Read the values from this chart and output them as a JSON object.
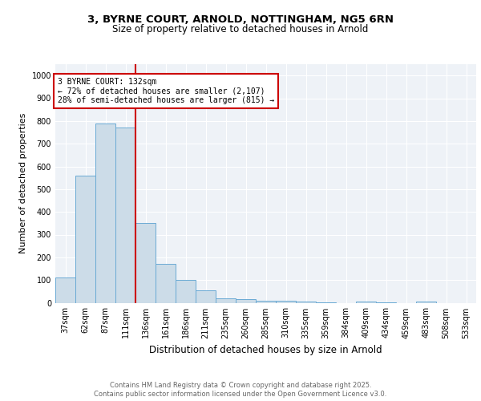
{
  "title_line1": "3, BYRNE COURT, ARNOLD, NOTTINGHAM, NG5 6RN",
  "title_line2": "Size of property relative to detached houses in Arnold",
  "xlabel": "Distribution of detached houses by size in Arnold",
  "ylabel": "Number of detached properties",
  "categories": [
    "37sqm",
    "62sqm",
    "87sqm",
    "111sqm",
    "136sqm",
    "161sqm",
    "186sqm",
    "211sqm",
    "235sqm",
    "260sqm",
    "285sqm",
    "310sqm",
    "335sqm",
    "359sqm",
    "384sqm",
    "409sqm",
    "434sqm",
    "459sqm",
    "483sqm",
    "508sqm",
    "533sqm"
  ],
  "values": [
    110,
    560,
    790,
    770,
    350,
    170,
    100,
    55,
    20,
    15,
    10,
    8,
    5,
    2,
    0,
    5,
    2,
    0,
    5,
    0,
    0
  ],
  "bar_color": "#ccdce8",
  "bar_edge_color": "#6aaad4",
  "vline_x": 3.5,
  "vline_color": "#cc0000",
  "annotation_text": "3 BYRNE COURT: 132sqm\n← 72% of detached houses are smaller (2,107)\n28% of semi-detached houses are larger (815) →",
  "annotation_box_color": "#cc0000",
  "ylim": [
    0,
    1050
  ],
  "yticks": [
    0,
    100,
    200,
    300,
    400,
    500,
    600,
    700,
    800,
    900,
    1000
  ],
  "footer_line1": "Contains HM Land Registry data © Crown copyright and database right 2025.",
  "footer_line2": "Contains public sector information licensed under the Open Government Licence v3.0.",
  "bg_color": "#eef2f7",
  "fig_bg_color": "#ffffff",
  "title1_fontsize": 9.5,
  "title2_fontsize": 8.5,
  "ylabel_fontsize": 8,
  "xlabel_fontsize": 8.5,
  "tick_fontsize": 7,
  "footer_fontsize": 6,
  "annot_fontsize": 7
}
